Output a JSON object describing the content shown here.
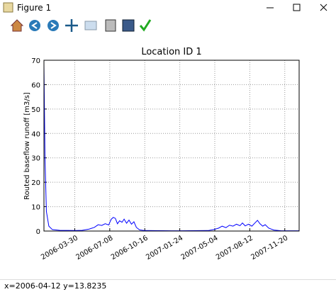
{
  "window": {
    "title": "Figure 1",
    "status": "x=2006-04-12 y=13.8235"
  },
  "chart_data": {
    "type": "line",
    "title": "Location ID 1",
    "y_label": "Routed baseflow runoff [m3/s]",
    "color": "#0000ff",
    "grid": true,
    "x": [
      "2006-01-01",
      "2006-01-04",
      "2006-01-08",
      "2006-01-15",
      "2006-01-25",
      "2006-02-15",
      "2006-04-01",
      "2006-04-20",
      "2006-05-10",
      "2006-05-25",
      "2006-06-05",
      "2006-06-15",
      "2006-06-25",
      "2006-07-05",
      "2006-07-12",
      "2006-07-18",
      "2006-07-24",
      "2006-07-30",
      "2006-08-05",
      "2006-08-12",
      "2006-08-18",
      "2006-08-25",
      "2006-09-01",
      "2006-09-08",
      "2006-09-15",
      "2006-09-22",
      "2006-10-01",
      "2006-10-15",
      "2007-01-01",
      "2007-04-15",
      "2007-05-01",
      "2007-05-15",
      "2007-05-25",
      "2007-06-05",
      "2007-06-15",
      "2007-06-25",
      "2007-07-05",
      "2007-07-15",
      "2007-07-22",
      "2007-07-30",
      "2007-08-08",
      "2007-08-18",
      "2007-08-28",
      "2007-09-03",
      "2007-09-10",
      "2007-09-18",
      "2007-09-25",
      "2007-10-05",
      "2007-10-20",
      "2007-11-10",
      "2007-12-31"
    ],
    "values": [
      68,
      30,
      8,
      2,
      0.6,
      0.3,
      0.2,
      0.3,
      0.8,
      1.5,
      2.6,
      2.3,
      3.0,
      2.5,
      4.8,
      5.6,
      5.2,
      3.0,
      4.2,
      3.6,
      4.9,
      3.2,
      4.5,
      2.8,
      3.8,
      1.5,
      0.5,
      0.2,
      0.1,
      0.2,
      0.6,
      1.2,
      2.0,
      1.4,
      2.4,
      2.0,
      2.8,
      2.2,
      3.3,
      2.1,
      2.8,
      2.0,
      3.5,
      4.4,
      3.0,
      2.0,
      2.6,
      1.2,
      0.4,
      0.1,
      0.1
    ],
    "xlim": [
      "2006-01-01",
      "2007-12-31"
    ],
    "xticks": [
      "2006-03-30",
      "2006-07-08",
      "2006-10-16",
      "2007-01-24",
      "2007-05-04",
      "2007-08-12",
      "2007-11-20"
    ],
    "ylim": [
      0,
      70
    ],
    "yticks": [
      0,
      10,
      20,
      30,
      40,
      50,
      60,
      70
    ]
  }
}
